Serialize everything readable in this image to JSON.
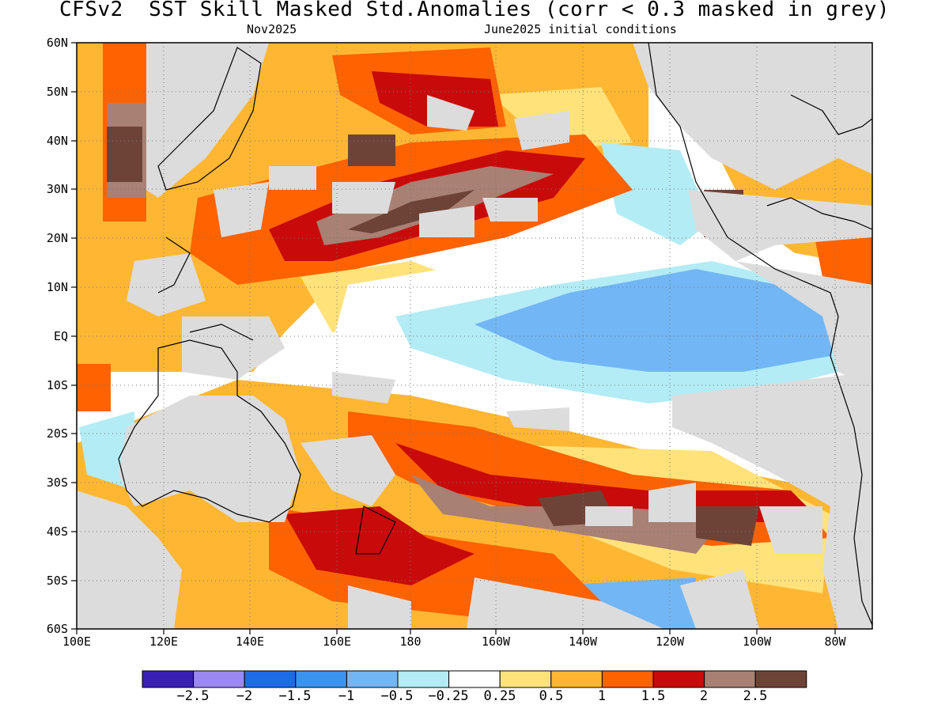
{
  "title": "CFSv2  SST Skill Masked Std.Anomalies (corr < 0.3 masked in grey)",
  "valid_month": "Nov2025",
  "initial_conditions": "June2025 initial conditions",
  "mask_color": "#dcdcdc",
  "lat_labels": [
    "60N",
    "50N",
    "40N",
    "30N",
    "20N",
    "10N",
    "EQ",
    "10S",
    "20S",
    "30S",
    "40S",
    "50S",
    "60S"
  ],
  "lon_labels": [
    "100E",
    "120E",
    "140E",
    "160E",
    "180",
    "160W",
    "140W",
    "120W",
    "100W",
    "80W"
  ],
  "colorbar": {
    "colors": [
      "#3a1fb4",
      "#9b88f0",
      "#1e6be8",
      "#3b93f0",
      "#72b6f5",
      "#b3ecf5",
      "#ffffff",
      "#ffe27a",
      "#ffb733",
      "#ff6200",
      "#c80a0a",
      "#a88074",
      "#6e4337"
    ],
    "labels": [
      "−2.5",
      "−2",
      "−1.5",
      "−1",
      "−0.5",
      "−0.25",
      "0.25",
      "0.5",
      "1",
      "1.5",
      "2",
      "2.5"
    ]
  }
}
